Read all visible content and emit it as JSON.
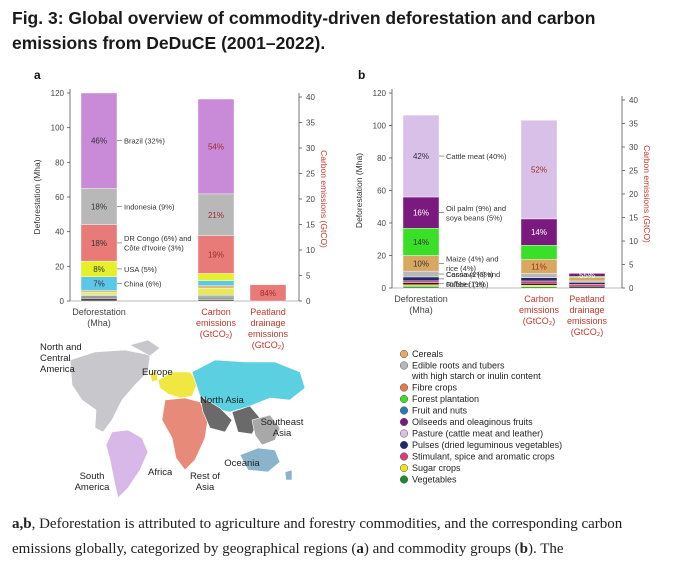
{
  "title": {
    "prefix": "Fig. 3:",
    "text": "Global overview of commodity-driven deforestation and carbon emissions from DeDuCE (2001–2022)."
  },
  "caption": {
    "parts": [
      {
        "t": "a,b",
        "b": true
      },
      {
        "t": ", Deforestation is attributed to agriculture and forestry commodities, and the corresponding carbon emissions globally, categorized by geographical regions (",
        "b": false
      },
      {
        "t": "a",
        "b": true
      },
      {
        "t": ") and commodity groups (",
        "b": false
      },
      {
        "t": "b",
        "b": true
      },
      {
        "t": "). The",
        "b": false
      }
    ]
  },
  "chart_data": [
    {
      "type": "bar",
      "panel": "a",
      "panel_label": "a",
      "stacked": true,
      "ylabel_left": "Deforestation (Mha)",
      "ylabel_right": "Carbon emissions (GtCO2)",
      "ylim_left": [
        0,
        120
      ],
      "yticks_left": [
        0,
        20,
        40,
        60,
        80,
        100,
        120
      ],
      "ylim_right": [
        0,
        40
      ],
      "yticks_right": [
        0,
        5,
        10,
        15,
        20,
        25,
        30,
        35,
        40
      ],
      "categories": [
        {
          "label": [
            "Deforestation",
            "(Mha)"
          ],
          "axis": "left"
        },
        {
          "label": [
            "Carbon",
            "emissions",
            "(GtCO₂)"
          ],
          "axis": "right"
        },
        {
          "label": [
            "Peatland",
            "drainage",
            "emissions",
            "(GtCO₂)"
          ],
          "axis": "right"
        }
      ],
      "series": [
        {
          "name": "Rest of Asia",
          "color": "#4a4a4a",
          "values": [
            1.5,
            0.3,
            0
          ]
        },
        {
          "name": "Southeast Asia",
          "color": "#9a9a9a",
          "values": [
            1.5,
            0.5,
            0
          ]
        },
        {
          "name": "Oceania",
          "color": "#6f95ae",
          "values": [
            0.5,
            0.3,
            0
          ]
        },
        {
          "name": "South America",
          "color": "#e8e85a",
          "values": [
            1.5,
            1.4,
            0
          ]
        },
        {
          "name": "Africa",
          "color": "#e6b87a",
          "values": [
            1,
            0.5,
            0
          ]
        },
        {
          "name": "China",
          "color": "#5ac8e6",
          "values": [
            8,
            1.0,
            0
          ]
        },
        {
          "name": "USA",
          "color": "#e6f02a",
          "values": [
            9,
            1.4,
            0
          ]
        },
        {
          "name": "DR Congo and Côte d'Ivoire",
          "color": "#e87a78",
          "values": [
            21,
            7.4,
            0
          ]
        },
        {
          "name": "Indonesia",
          "color": "#b8b8b8",
          "values": [
            21,
            8.2,
            0
          ]
        },
        {
          "name": "Brazil",
          "color": "#c98ad8",
          "values": [
            55,
            18.6,
            0
          ]
        },
        {
          "name": "Peatland drainage",
          "color": "#e87a78",
          "values": [
            0,
            0,
            3.2
          ]
        }
      ],
      "bar_labels": [
        {
          "bar": 0,
          "series": 5,
          "text": "7%"
        },
        {
          "bar": 0,
          "series": 6,
          "text": "8%"
        },
        {
          "bar": 0,
          "series": 7,
          "text": "18%"
        },
        {
          "bar": 0,
          "series": 8,
          "text": "18%"
        },
        {
          "bar": 0,
          "series": 9,
          "text": "46%"
        },
        {
          "bar": 1,
          "series": 7,
          "text": "19%"
        },
        {
          "bar": 1,
          "series": 8,
          "text": "21%"
        },
        {
          "bar": 1,
          "series": 9,
          "text": "54%"
        },
        {
          "bar": 2,
          "series": 10,
          "text": "84%"
        }
      ],
      "annotations": [
        {
          "series": 9,
          "lines": [
            "Brazil (32%)"
          ]
        },
        {
          "series": 8,
          "lines": [
            "Indonesia (9%)"
          ]
        },
        {
          "series": 7,
          "lines": [
            "DR Congo (6%) and",
            "Côte d'Ivoire (3%)"
          ]
        },
        {
          "series": 6,
          "lines": [
            "USA (5%)"
          ]
        },
        {
          "series": 5,
          "lines": [
            "China (6%)"
          ]
        }
      ]
    },
    {
      "type": "bar",
      "panel": "b",
      "panel_label": "b",
      "stacked": true,
      "ylabel_left": "Deforestation (Mha)",
      "ylabel_right": "Carbon emissions (GtCO2)",
      "ylim_left": [
        0,
        120
      ],
      "yticks_left": [
        0,
        20,
        40,
        60,
        80,
        100,
        120
      ],
      "ylim_right": [
        0,
        40
      ],
      "yticks_right": [
        0,
        5,
        10,
        15,
        20,
        25,
        30,
        35,
        40
      ],
      "categories": [
        {
          "label": [
            "Deforestation",
            "(Mha)"
          ],
          "axis": "left"
        },
        {
          "label": [
            "Carbon",
            "emissions",
            "(GtCO₂)"
          ],
          "axis": "right"
        },
        {
          "label": [
            "Peatland",
            "drainage",
            "emissions",
            "(GtCO₂)"
          ],
          "axis": "right"
        }
      ],
      "series": [
        {
          "name": "Vegetables",
          "color": "#1a8a2a",
          "values": [
            1,
            0.3,
            0
          ]
        },
        {
          "name": "Sugar crops",
          "color": "#f0e020",
          "values": [
            1,
            0.3,
            0
          ]
        },
        {
          "name": "Rubber",
          "color": "#222222",
          "values": [
            1.2,
            0.4,
            0.4
          ]
        },
        {
          "name": "Coffee",
          "color": "#e03a7a",
          "values": [
            1.2,
            0.5,
            0.4
          ]
        },
        {
          "name": "Cocoa",
          "color": "#1e2a6e",
          "values": [
            2.4,
            0.7,
            0.4
          ]
        },
        {
          "name": "Cassava",
          "color": "#b8b8b8",
          "values": [
            3.6,
            0.9,
            0.3
          ]
        },
        {
          "name": "Maize and rice",
          "color": "#d8a860",
          "values": [
            9.6,
            3.0,
            0.8
          ]
        },
        {
          "name": "Forest plantation",
          "color": "#3ae028",
          "values": [
            16.8,
            3.0,
            0.2
          ]
        },
        {
          "name": "Oil palm and soya beans",
          "color": "#7a1a7e",
          "values": [
            19.2,
            5.6,
            0.6
          ]
        },
        {
          "name": "Cattle meat",
          "color": "#d8c0e8",
          "values": [
            50.4,
            21.0,
            0
          ]
        }
      ],
      "bar_labels": [
        {
          "bar": 0,
          "series": 6,
          "text": "10%"
        },
        {
          "bar": 0,
          "series": 7,
          "text": "14%"
        },
        {
          "bar": 0,
          "series": 8,
          "text": "16%"
        },
        {
          "bar": 0,
          "series": 9,
          "text": "42%"
        },
        {
          "bar": 1,
          "series": 6,
          "text": "11%"
        },
        {
          "bar": 1,
          "series": 8,
          "text": "14%"
        },
        {
          "bar": 1,
          "series": 9,
          "text": "52%"
        },
        {
          "bar": 2,
          "series": 8,
          "text": "55%"
        }
      ],
      "annotations": [
        {
          "series": 9,
          "lines": [
            "Cattle meat (40%)"
          ]
        },
        {
          "series": 8,
          "lines": [
            "Oil palm (9%) and",
            "soya beans (5%)"
          ]
        },
        {
          "series": 6,
          "lines": [
            "Maize (4%) and",
            "rice (4%)"
          ]
        },
        {
          "series": 5,
          "lines": [
            "Cassava (3%)"
          ]
        },
        {
          "series": 4,
          "lines": [
            "Cocoa (2%) and",
            "coffee (1%)"
          ]
        },
        {
          "series": 2,
          "lines": [
            "Rubber (1%)"
          ]
        }
      ]
    }
  ],
  "map": {
    "labels": [
      {
        "key": "north_central_america",
        "lines": [
          "North and",
          "Central",
          "America"
        ]
      },
      {
        "key": "europe",
        "lines": [
          "Europe"
        ]
      },
      {
        "key": "north_asia",
        "lines": [
          "North Asia"
        ]
      },
      {
        "key": "southeast_asia",
        "lines": [
          "Southeast",
          "Asia"
        ]
      },
      {
        "key": "oceania",
        "lines": [
          "Oceania"
        ]
      },
      {
        "key": "africa",
        "lines": [
          "Africa"
        ]
      },
      {
        "key": "rest_of_asia",
        "lines": [
          "Rest of",
          "Asia"
        ]
      },
      {
        "key": "south_america",
        "lines": [
          "South",
          "America"
        ]
      }
    ],
    "colors": {
      "north_central_america": "#c8c8cc",
      "south_america": "#d8b8e8",
      "europe": "#f0e840",
      "africa": "#e88a7a",
      "north_asia": "#5ad0e0",
      "rest_of_asia": "#6a6a6a",
      "southeast_asia": "#a8a8a8",
      "oceania": "#8ab4cc"
    }
  },
  "legend": {
    "items": [
      {
        "label": "Cereals",
        "color": "#e8a860"
      },
      {
        "label": "Edible roots and tubers",
        "label2": "with high starch or inulin content",
        "color": "#b8b8b8"
      },
      {
        "label": "Fibre crops",
        "color": "#e87a4a"
      },
      {
        "label": "Forest plantation",
        "color": "#3ae028"
      },
      {
        "label": "Fruit and nuts",
        "color": "#2a7ab8"
      },
      {
        "label": "Oilseeds and oleaginous fruits",
        "color": "#7a1a7e"
      },
      {
        "label": "Pasture (cattle meat and leather)",
        "color": "#d8c0e8"
      },
      {
        "label": "Pulses (dried leguminous vegetables)",
        "color": "#1e2a6e"
      },
      {
        "label": "Stimulant, spice and aromatic crops",
        "color": "#e03a7a"
      },
      {
        "label": "Sugar crops",
        "color": "#f0e020"
      },
      {
        "label": "Vegetables",
        "color": "#1a8a2a"
      }
    ]
  }
}
